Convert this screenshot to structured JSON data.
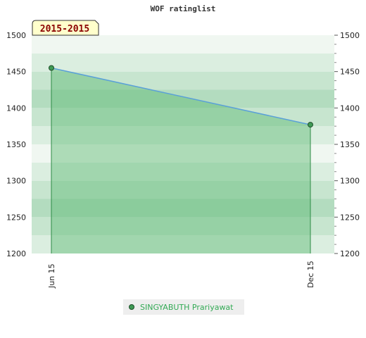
{
  "chart_data": {
    "type": "area",
    "title": "WOF ratinglist",
    "period_label": "2015-2015",
    "categories": [
      "Jun 15",
      "Dec 15"
    ],
    "series": [
      {
        "name": "SINGYABUTH Prariyawat",
        "values": [
          1455,
          1377
        ],
        "color": "#5aa0d8",
        "fill": "#5cb870",
        "marker": "#3f9a55"
      }
    ],
    "ylim": [
      1200,
      1500
    ],
    "y_ticks": [
      1200,
      1250,
      1300,
      1350,
      1400,
      1450,
      1500
    ],
    "y_tick_labels": [
      "1200",
      "1250",
      "1300",
      "1350",
      "1400",
      "1450",
      "1500"
    ],
    "y_axis_right": true,
    "xlabel": "",
    "ylabel": "",
    "grid": false,
    "legend_position": "bottom",
    "band_colors": [
      "#f0f7f1",
      "#dbeee0",
      "#c7e5cf",
      "#b3dcbf"
    ]
  }
}
